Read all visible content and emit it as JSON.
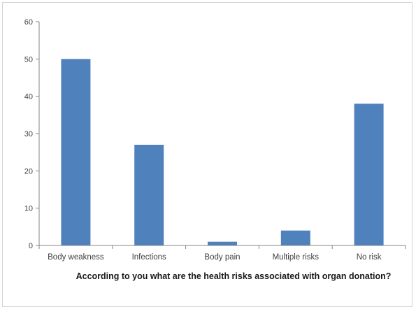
{
  "chart_data": {
    "type": "bar",
    "categories": [
      "Body weakness",
      "Infections",
      "Body pain",
      "Multiple risks",
      "No risk"
    ],
    "values": [
      50,
      27,
      1,
      4,
      38
    ],
    "title": "",
    "xlabel": "According to you what are the health risks associated with organ donation?",
    "ylabel": "",
    "ylim": [
      0,
      60
    ],
    "yticks": [
      0,
      10,
      20,
      30,
      40,
      50,
      60
    ],
    "grid": false,
    "legend": "none",
    "bar_color": "#4f81bd"
  }
}
